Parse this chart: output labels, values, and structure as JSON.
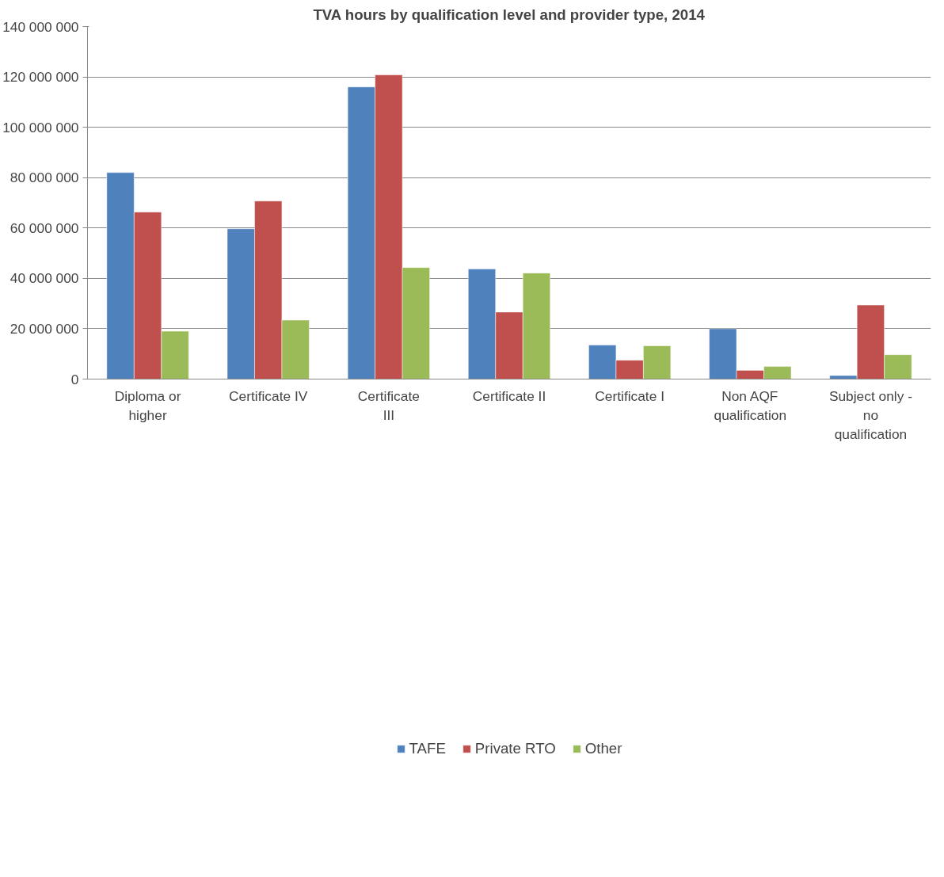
{
  "chart_data": {
    "type": "bar",
    "title": "TVA hours by qualification level and provider type, 2014",
    "categories": [
      "Diploma or higher",
      "Certificate IV",
      "Certificate III",
      "Certificate II",
      "Certificate I",
      "Non AQF qualification",
      "Subject only - no qualification"
    ],
    "series": [
      {
        "name": "TAFE",
        "color": "#4f81bd",
        "values": [
          82000000,
          59700000,
          116000000,
          43700000,
          13500000,
          20000000,
          1400000
        ]
      },
      {
        "name": "Private RTO",
        "color": "#c0504d",
        "values": [
          66300000,
          70700000,
          120800000,
          26600000,
          7500000,
          3500000,
          29400000
        ]
      },
      {
        "name": "Other",
        "color": "#9bbb59",
        "values": [
          19000000,
          23400000,
          44300000,
          42100000,
          13200000,
          5000000,
          9700000
        ]
      }
    ],
    "ylim": [
      0,
      140000000
    ],
    "yticks": [
      {
        "value": 0,
        "label": "0"
      },
      {
        "value": 20000000,
        "label": "20 000 000"
      },
      {
        "value": 40000000,
        "label": "40 000 000"
      },
      {
        "value": 60000000,
        "label": "60 000 000"
      },
      {
        "value": 80000000,
        "label": "80 000 000"
      },
      {
        "value": 100000000,
        "label": "100 000 000"
      },
      {
        "value": 120000000,
        "label": "120 000 000"
      },
      {
        "value": 140000000,
        "label": "140 000 000"
      }
    ],
    "grid": "y",
    "legend": "bottom"
  }
}
